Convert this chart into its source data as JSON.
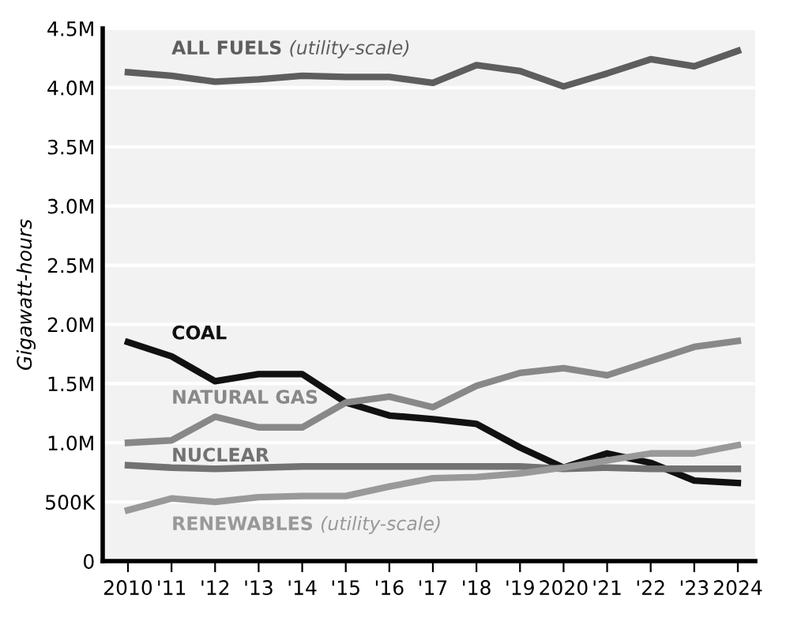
{
  "chart_data": {
    "type": "line",
    "ylabel": "Gigawatt-hours",
    "x": [
      2010,
      2011,
      2012,
      2013,
      2014,
      2015,
      2016,
      2017,
      2018,
      2019,
      2020,
      2021,
      2022,
      2023,
      2024
    ],
    "series": [
      {
        "name": "ALL FUELS (utility-scale)",
        "color": "#5e5e5e",
        "values": [
          4130000,
          4100000,
          4050000,
          4070000,
          4100000,
          4090000,
          4090000,
          4040000,
          4190000,
          4140000,
          4010000,
          4120000,
          4240000,
          4180000,
          4310000
        ]
      },
      {
        "name": "COAL",
        "color": "#111111",
        "values": [
          1850000,
          1730000,
          1520000,
          1580000,
          1580000,
          1340000,
          1230000,
          1200000,
          1160000,
          960000,
          790000,
          910000,
          830000,
          680000,
          660000
        ]
      },
      {
        "name": "NATURAL GAS",
        "color": "#888888",
        "values": [
          1000000,
          1020000,
          1220000,
          1130000,
          1130000,
          1340000,
          1390000,
          1300000,
          1480000,
          1590000,
          1630000,
          1570000,
          1690000,
          1810000,
          1860000
        ]
      },
      {
        "name": "NUCLEAR",
        "color": "#727272",
        "values": [
          810000,
          790000,
          780000,
          790000,
          800000,
          800000,
          800000,
          800000,
          800000,
          800000,
          780000,
          790000,
          780000,
          780000,
          780000
        ]
      },
      {
        "name": "RENEWABLES (utility-scale)",
        "color": "#999999",
        "values": [
          430000,
          530000,
          500000,
          540000,
          550000,
          550000,
          630000,
          700000,
          710000,
          740000,
          790000,
          850000,
          910000,
          910000,
          980000
        ]
      }
    ],
    "xlim": [
      2009.42,
      2024.4
    ],
    "xticks": [
      2010,
      {
        "value": 2011,
        "label": "'11"
      },
      {
        "value": 2012,
        "label": "'12"
      },
      {
        "value": 2013,
        "label": "'13"
      },
      {
        "value": 2014,
        "label": "'14"
      },
      {
        "value": 2015,
        "label": "'15"
      },
      {
        "value": 2016,
        "label": "'16"
      },
      {
        "value": 2017,
        "label": "'17"
      },
      {
        "value": 2018,
        "label": "'18"
      },
      {
        "value": 2019,
        "label": "'19"
      },
      2020,
      {
        "value": 2021,
        "label": "'21"
      },
      {
        "value": 2022,
        "label": "'22"
      },
      {
        "value": 2023,
        "label": "'23"
      },
      2024
    ],
    "ylim": [
      0,
      4500000
    ],
    "yticks": [
      0,
      {
        "value": 500000,
        "label": "500K"
      },
      {
        "value": 1000000,
        "label": "1.0M"
      },
      {
        "value": 1500000,
        "label": "1.5M"
      },
      {
        "value": 2000000,
        "label": "2.0M"
      },
      {
        "value": 2500000,
        "label": "2.5M"
      },
      {
        "value": 3000000,
        "label": "3.0M"
      },
      {
        "value": 3500000,
        "label": "3.5M"
      },
      {
        "value": 4000000,
        "label": "4.0M"
      },
      {
        "value": 4500000,
        "label": "4.5M"
      }
    ],
    "grid": "y",
    "marker": "none",
    "line_style": "solid"
  }
}
